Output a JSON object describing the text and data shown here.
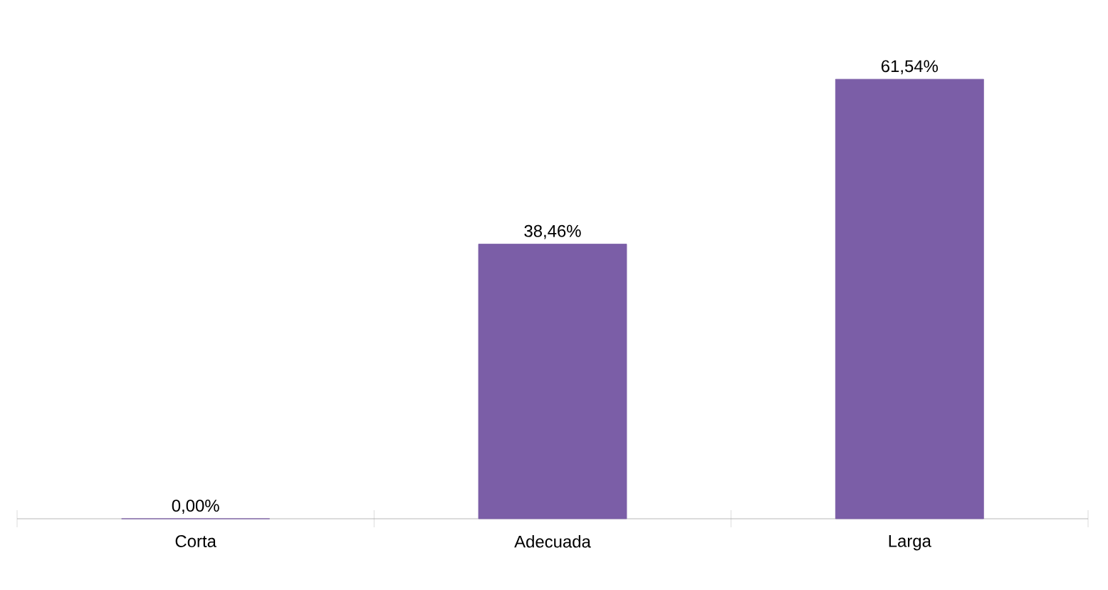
{
  "chart_data": {
    "type": "bar",
    "categories": [
      "Corta",
      "Adecuada",
      "Larga"
    ],
    "values": [
      0,
      38.46,
      61.54
    ],
    "value_labels": [
      "0,00%",
      "38,46%",
      "61,54%"
    ],
    "color": "#7b5ea7",
    "tick_labels": "x"
  }
}
